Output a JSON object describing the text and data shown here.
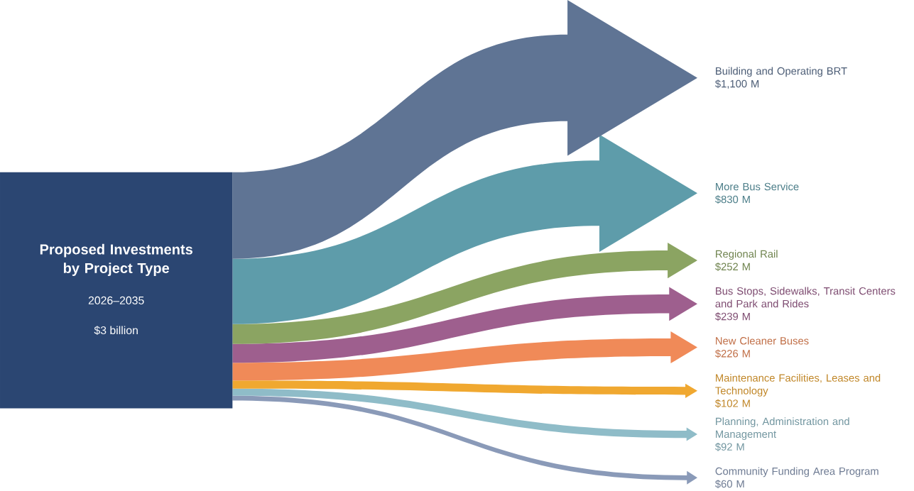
{
  "chart_data": {
    "type": "other",
    "title": "Proposed Investments by Project Type",
    "subtitle": "2026–2035",
    "annotations": [
      "$3 billion"
    ],
    "categories": [
      "Building and Operating BRT",
      "More Bus Service",
      "Regional Rail",
      "Bus Stops, Sidewalks, Transit Centers and Park and Rides",
      "New Cleaner Buses",
      "Maintenance Facilities, Leases and Technology",
      "Planning, Administration and Management",
      "Community Funding Area Program"
    ],
    "values": [
      1100,
      830,
      252,
      239,
      226,
      102,
      92,
      60
    ],
    "value_labels": [
      "$1,100 M",
      "$830 M",
      "$252 M",
      "$239 M",
      "$226 M",
      "$102 M",
      "$92 M",
      "$60 M"
    ],
    "colors": [
      "#5f7494",
      "#5e9caa",
      "#8ba462",
      "#9e5f8e",
      "#f08a58",
      "#f0a830",
      "#8fbcc8",
      "#8a9ab8"
    ]
  }
}
